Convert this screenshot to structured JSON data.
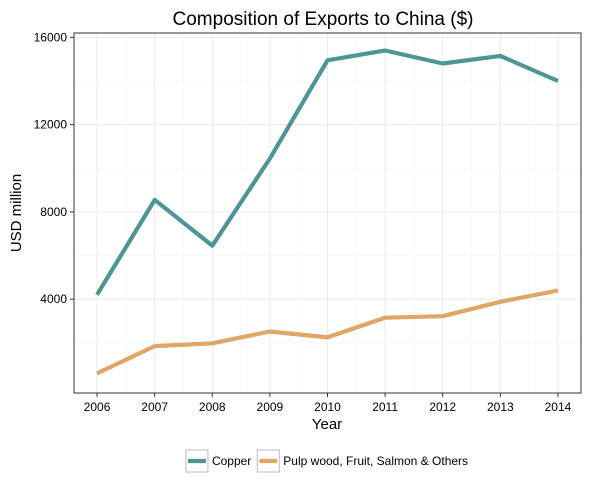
{
  "chart_data": {
    "type": "line",
    "title": "Composition of Exports to China ($)",
    "xlabel": "Year",
    "ylabel": "USD million",
    "x": [
      2006,
      2007,
      2008,
      2009,
      2010,
      2011,
      2012,
      2013,
      2014
    ],
    "x_tick_labels": [
      "2006",
      "2007",
      "2008",
      "2009",
      "2010",
      "2011",
      "2012",
      "2013",
      "2014"
    ],
    "y_ticks": [
      4000,
      8000,
      12000,
      16000
    ],
    "y_tick_labels": [
      "4000",
      "8000",
      "12000",
      "16000"
    ],
    "xlim": [
      2005.6,
      2014.4
    ],
    "ylim": [
      -300,
      16200
    ],
    "grid": true,
    "legend_position": "bottom",
    "series": [
      {
        "name": "Copper",
        "color": "#4e9595",
        "values": [
          4200,
          8550,
          6450,
          10450,
          14950,
          15400,
          14800,
          15150,
          14000
        ]
      },
      {
        "name": "Pulp wood, Fruit, Salmon & Others",
        "color": "#dfa665",
        "values": [
          600,
          1850,
          1980,
          2520,
          2250,
          3150,
          3220,
          3880,
          4400
        ]
      }
    ]
  }
}
